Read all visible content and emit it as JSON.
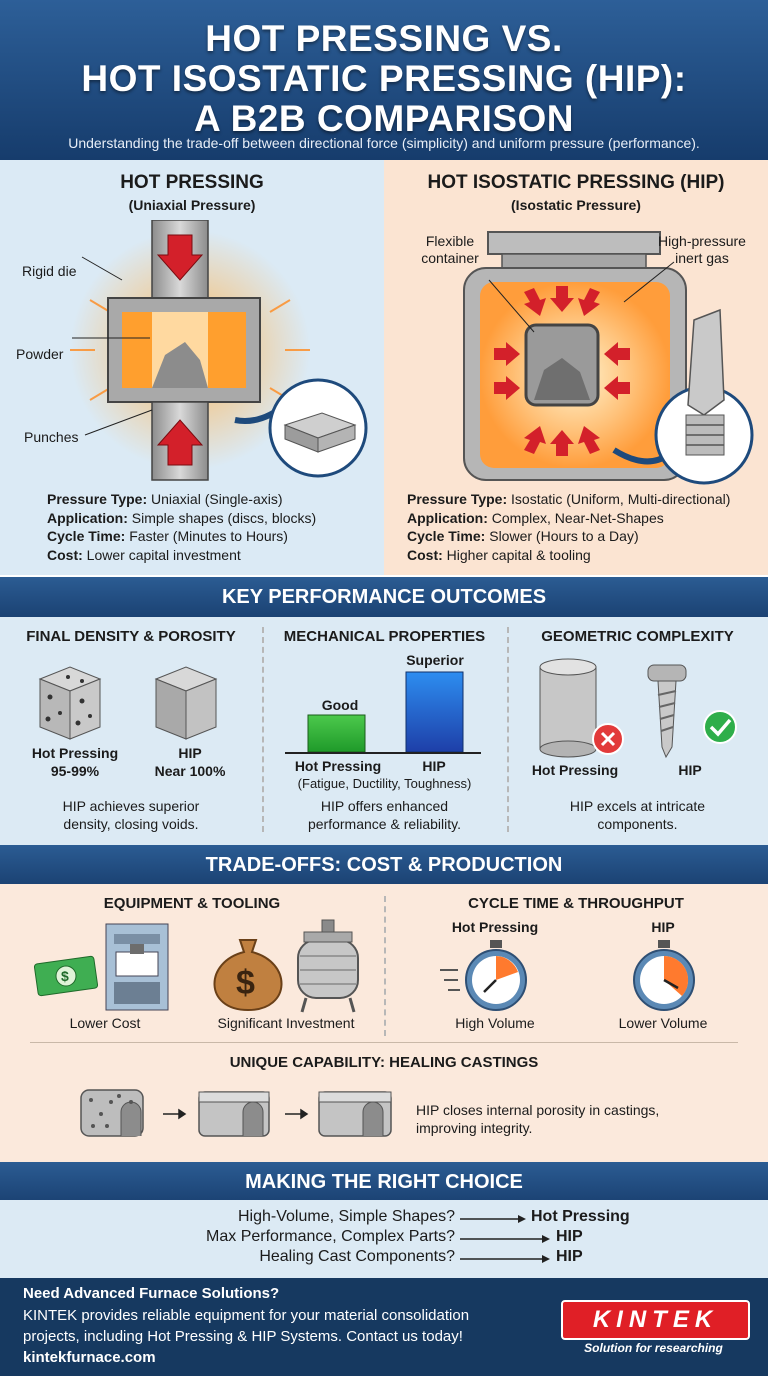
{
  "header": {
    "title_line1": "HOT PRESSING VS.",
    "title_line2": "HOT ISOSTATIC PRESSING (HIP):",
    "title_line3": "A B2B COMPARISON",
    "subtitle": "Understanding the trade-off between directional force (simplicity) and uniform pressure (performance)."
  },
  "left": {
    "title": "HOT PRESSING",
    "subtitle": "(Uniaxial Pressure)",
    "labels": {
      "die": "Rigid die",
      "powder": "Powder",
      "punches": "Punches"
    },
    "specs": [
      {
        "k": "Pressure Type:",
        "v": "Uniaxial (Single-axis)"
      },
      {
        "k": "Application:",
        "v": "Simple shapes (discs, blocks)"
      },
      {
        "k": "Cycle Time:",
        "v": "Faster (Minutes to Hours)"
      },
      {
        "k": "Cost:",
        "v": "Lower capital investment"
      }
    ]
  },
  "right": {
    "title": "HOT ISOSTATIC PRESSING (HIP)",
    "subtitle": "(Isostatic Pressure)",
    "labels": {
      "container1": "Flexible",
      "container2": "container",
      "gas1": "High-pressure",
      "gas2": "inert gas"
    },
    "specs": [
      {
        "k": "Pressure Type:",
        "v": "Isostatic (Uniform, Multi-directional)"
      },
      {
        "k": "Application:",
        "v": "Complex, Near-Net-Shapes"
      },
      {
        "k": "Cycle Time:",
        "v": "Slower (Hours to a Day)"
      },
      {
        "k": "Cost:",
        "v": "Higher capital & tooling"
      }
    ]
  },
  "outcomes": {
    "heading": "KEY PERFORMANCE OUTCOMES",
    "density": {
      "title": "FINAL DENSITY & POROSITY",
      "hp_name": "Hot Pressing",
      "hp_value": "95-99%",
      "hip_name": "HIP",
      "hip_value": "Near 100%",
      "text1": "HIP achieves superior",
      "text2": "density, closing voids."
    },
    "mechanical": {
      "title": "MECHANICAL PROPERTIES",
      "good": "Good",
      "superior": "Superior",
      "hp_name": "Hot Pressing",
      "hip_name": "HIP",
      "note": "(Fatigue, Ductility, Toughness)",
      "text1": "HIP offers enhanced",
      "text2": "performance & reliability."
    },
    "geometry": {
      "title": "GEOMETRIC COMPLEXITY",
      "hp_name": "Hot Pressing",
      "hip_name": "HIP",
      "text1": "HIP excels at intricate",
      "text2": "components."
    }
  },
  "tradeoffs": {
    "heading": "TRADE-OFFS: COST & PRODUCTION",
    "equipment": {
      "title": "EQUIPMENT & TOOLING",
      "low": "Lower Cost",
      "high": "Significant Investment",
      "dollar": "$"
    },
    "cycle": {
      "title": "CYCLE TIME & THROUGHPUT",
      "hp_name": "Hot Pressing",
      "hip_name": "HIP",
      "hp_vol": "High Volume",
      "hip_vol": "Lower Volume"
    },
    "healing": {
      "title": "UNIQUE CAPABILITY: HEALING CASTINGS",
      "text1": "HIP closes internal porosity in castings,",
      "text2": "improving integrity."
    }
  },
  "choice": {
    "heading": "MAKING THE RIGHT CHOICE",
    "rows": [
      {
        "q": "High-Volume, Simple Shapes?",
        "a": "Hot Pressing"
      },
      {
        "q": "Max Performance, Complex Parts?",
        "a": "HIP"
      },
      {
        "q": "Healing Cast Components?",
        "a": "HIP"
      }
    ]
  },
  "footer": {
    "headline": "Need Advanced Furnace Solutions?",
    "line1": "KINTEK provides reliable equipment for your material consolidation",
    "line2": "projects, including Hot Pressing & HIP Systems. Contact us today!",
    "url": "kintekfurnace.com",
    "logo": "KINTEK",
    "tagline": "Solution for researching"
  }
}
